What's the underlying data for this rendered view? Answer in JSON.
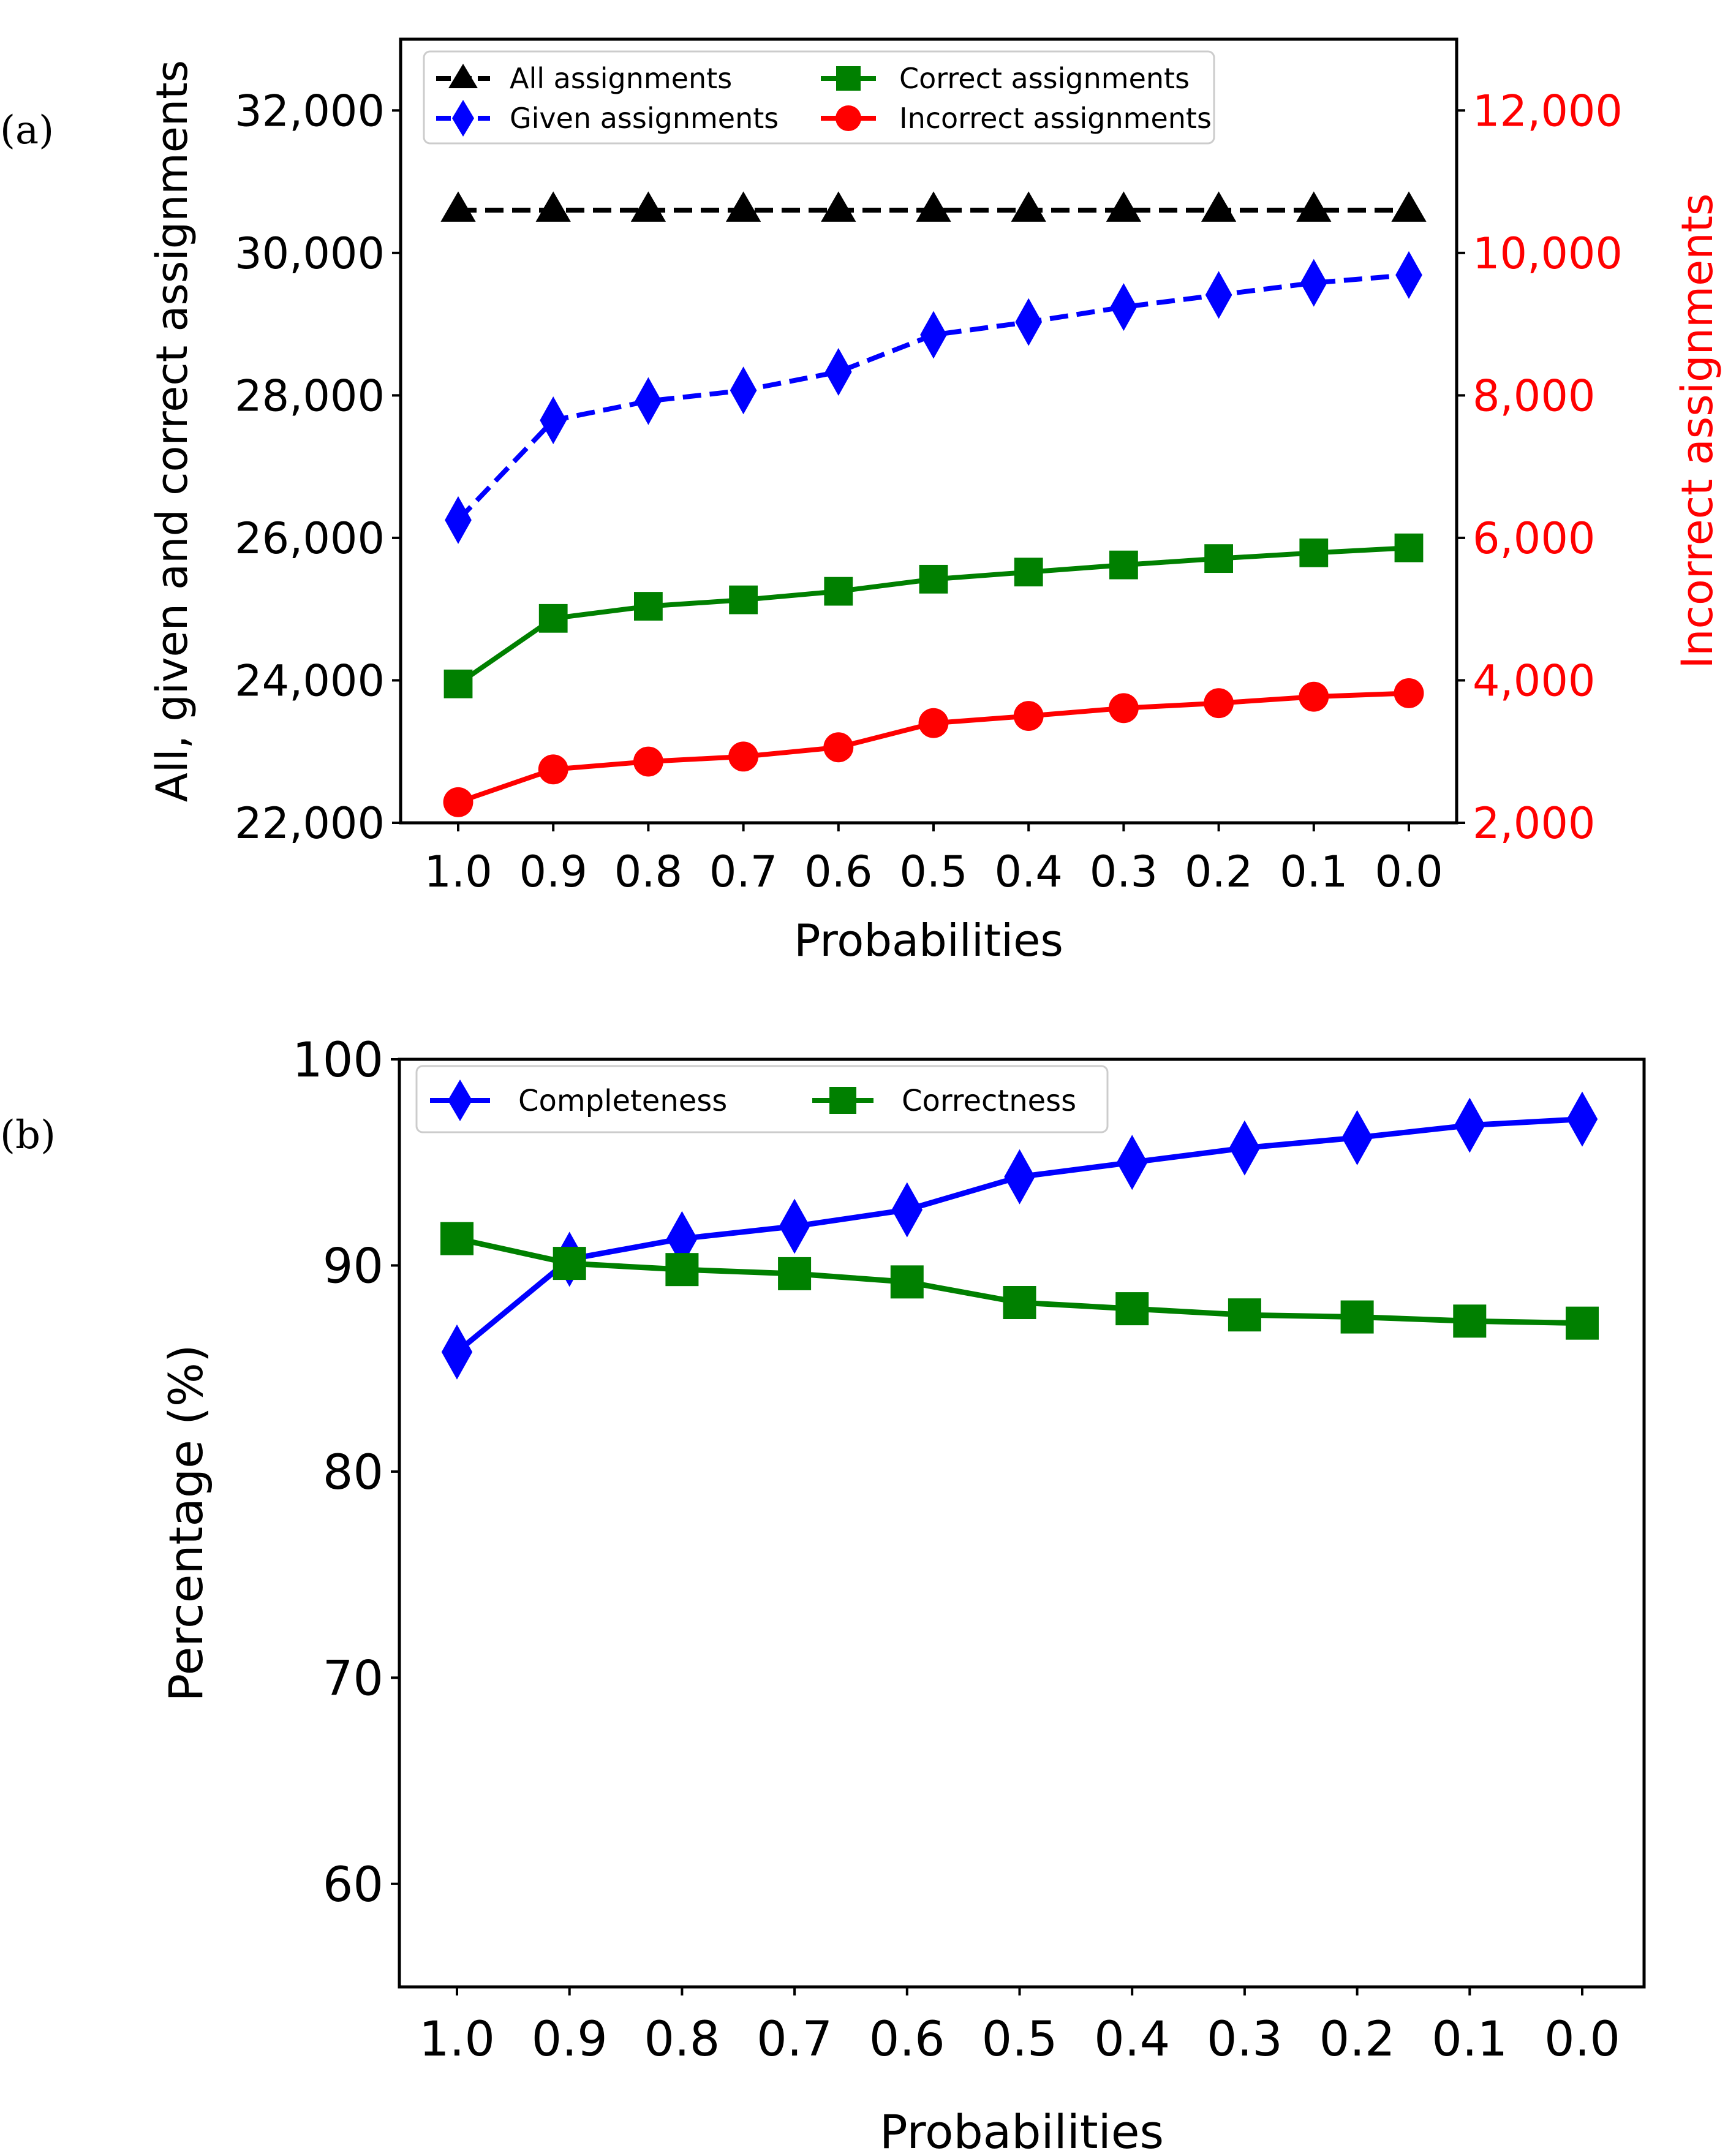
{
  "panel_labels": {
    "a": "(a)",
    "b": "(b)"
  },
  "legend_a": {
    "all": "All assignments",
    "given": "Given assignments",
    "correct": "Correct assignments",
    "incorrect": "Incorrect assignments"
  },
  "legend_b": {
    "completeness": "Completeness",
    "correctness": "Correctness"
  },
  "colors": {
    "all": "#000000",
    "given": "#0000ff",
    "correct": "#008000",
    "incorrect": "#ff0000",
    "axis": "#000000"
  },
  "chart_data": [
    {
      "type": "line",
      "panel": "(a)",
      "xlabel": "Probabilities",
      "ylabel": "All, given and correct assignments",
      "y2label": "Incorrect assignments",
      "categories": [
        "1.0",
        "0.9",
        "0.8",
        "0.7",
        "0.6",
        "0.5",
        "0.4",
        "0.3",
        "0.2",
        "0.1",
        "0.0"
      ],
      "ylim": [
        22000,
        33000
      ],
      "y_ticks": [
        22000,
        24000,
        26000,
        28000,
        30000,
        32000
      ],
      "y_tick_labels": [
        "22,000",
        "24,000",
        "26,000",
        "28,000",
        "30,000",
        "32,000"
      ],
      "y2lim": [
        2000,
        13000
      ],
      "y2_ticks": [
        2000,
        4000,
        6000,
        8000,
        10000,
        12000
      ],
      "y2_tick_labels": [
        "2,000",
        "4,000",
        "6,000",
        "8,000",
        "10,000",
        "12,000"
      ],
      "legend_position": "top-left",
      "series": [
        {
          "name": "All assignments",
          "axis": "left",
          "marker": "triangle",
          "style": "dashed",
          "values": [
            30600,
            30600,
            30600,
            30600,
            30600,
            30600,
            30600,
            30600,
            30600,
            30600,
            30600
          ]
        },
        {
          "name": "Given assignments",
          "axis": "left",
          "marker": "diamond",
          "style": "dashed",
          "values": [
            26250,
            27650,
            27920,
            28070,
            28330,
            28850,
            29030,
            29240,
            29410,
            29580,
            29690
          ]
        },
        {
          "name": "Correct assignments",
          "axis": "left",
          "marker": "square",
          "style": "solid",
          "values": [
            23950,
            24870,
            25040,
            25130,
            25250,
            25420,
            25520,
            25620,
            25710,
            25790,
            25860
          ]
        },
        {
          "name": "Incorrect assignments",
          "axis": "right",
          "marker": "circle",
          "style": "solid",
          "values": [
            2290,
            2750,
            2860,
            2930,
            3060,
            3400,
            3500,
            3610,
            3680,
            3770,
            3820
          ]
        }
      ]
    },
    {
      "type": "line",
      "panel": "(b)",
      "xlabel": "Probabilities",
      "ylabel": "Percentage (%)",
      "categories": [
        "1.0",
        "0.9",
        "0.8",
        "0.7",
        "0.6",
        "0.5",
        "0.4",
        "0.3",
        "0.2",
        "0.1",
        "0.0"
      ],
      "ylim": [
        55,
        100
      ],
      "y_ticks": [
        60,
        70,
        80,
        90,
        100
      ],
      "y_tick_labels": [
        "60",
        "70",
        "80",
        "90",
        "100"
      ],
      "legend_position": "top-left",
      "series": [
        {
          "name": "Completeness",
          "marker": "diamond",
          "style": "solid",
          "values": [
            85.8,
            90.3,
            91.3,
            91.9,
            92.7,
            94.3,
            95.0,
            95.7,
            96.2,
            96.8,
            97.1
          ]
        },
        {
          "name": "Correctness",
          "marker": "square",
          "style": "solid",
          "values": [
            91.3,
            90.1,
            89.8,
            89.6,
            89.2,
            88.2,
            87.9,
            87.6,
            87.5,
            87.3,
            87.2
          ]
        }
      ]
    }
  ]
}
